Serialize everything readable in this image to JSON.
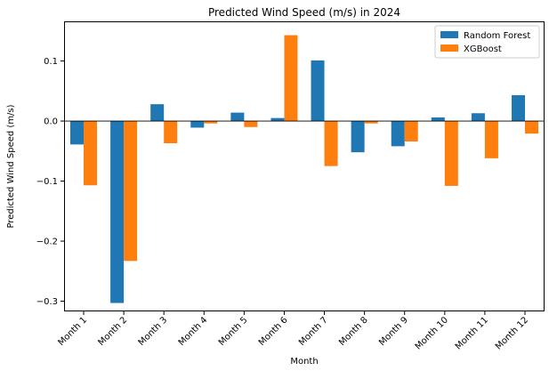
{
  "chart_data": {
    "type": "bar",
    "title": "Predicted Wind Speed (m/s) in 2024",
    "xlabel": "Month",
    "ylabel": "Predicted Wind Speed (m/s)",
    "categories": [
      "Month 1",
      "Month 2",
      "Month 3",
      "Month 4",
      "Month 5",
      "Month 6",
      "Month 7",
      "Month 8",
      "Month 9",
      "Month 10",
      "Month 11",
      "Month 12"
    ],
    "series": [
      {
        "name": "Random Forest",
        "color": "#1f77b4",
        "values": [
          -0.039,
          -0.303,
          0.028,
          -0.011,
          0.014,
          0.005,
          0.101,
          -0.052,
          -0.042,
          0.006,
          0.013,
          0.043
        ]
      },
      {
        "name": "XGBoost",
        "color": "#ff7f0e",
        "values": [
          -0.107,
          -0.233,
          -0.037,
          -0.004,
          -0.01,
          0.143,
          -0.075,
          -0.004,
          -0.034,
          -0.108,
          -0.062,
          -0.021
        ]
      }
    ],
    "ylim": [
      -0.317,
      0.166
    ],
    "yticks": [
      -0.3,
      -0.2,
      -0.1,
      0.0,
      0.1
    ],
    "ytick_labels": [
      "−0.3",
      "−0.2",
      "−0.1",
      "0.0",
      "0.1"
    ],
    "grid": false,
    "legend_position": "upper right"
  }
}
